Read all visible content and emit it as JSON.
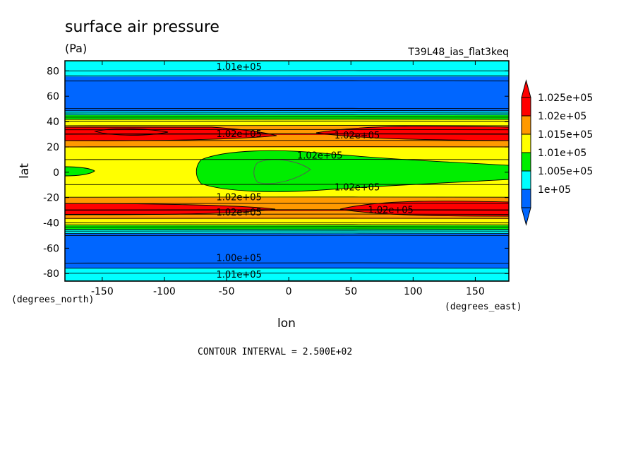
{
  "chart_data": {
    "type": "heatmap",
    "title": "surface air pressure",
    "subtitle": "(Pa)",
    "run_label": "T39L48_ias_flat3keq",
    "xlabel": "lon",
    "ylabel": "lat",
    "x_units": "(degrees_east)",
    "y_units": "(degrees_north)",
    "xlim": [
      -180,
      177
    ],
    "ylim": [
      -86,
      88
    ],
    "x_ticks": [
      -150,
      -100,
      -50,
      0,
      50,
      100,
      150
    ],
    "y_ticks": [
      -80,
      -60,
      -40,
      -20,
      0,
      20,
      40,
      60,
      80
    ],
    "footer": "CONTOUR INTERVAL = 2.500E+02",
    "contour_interval": 250,
    "grid": false,
    "legend_position": "right",
    "colorbar": {
      "labels": [
        "1.025e+05",
        "1.02e+05",
        "1.015e+05",
        "1.01e+05",
        "1.005e+05",
        "1e+05"
      ],
      "colors": [
        "#ff0000",
        "#ff9900",
        "#ffff00",
        "#00ee00",
        "#00ffff",
        "#0066ff"
      ],
      "above_color": "#ff0000",
      "below_color": "#0066ff"
    },
    "zonal_profile": [
      {
        "lat": 88,
        "pressure": 101000
      },
      {
        "lat": 80,
        "pressure": 100750
      },
      {
        "lat": 72,
        "pressure": 100250
      },
      {
        "lat": 60,
        "pressure": 100000
      },
      {
        "lat": 50,
        "pressure": 100250
      },
      {
        "lat": 45,
        "pressure": 101000
      },
      {
        "lat": 40,
        "pressure": 101750
      },
      {
        "lat": 30,
        "pressure": 102500
      },
      {
        "lat": 20,
        "pressure": 102000
      },
      {
        "lat": 10,
        "pressure": 101750
      },
      {
        "lat": 0,
        "pressure": 101500
      },
      {
        "lat": -10,
        "pressure": 101750
      },
      {
        "lat": -20,
        "pressure": 102000
      },
      {
        "lat": -30,
        "pressure": 102500
      },
      {
        "lat": -40,
        "pressure": 101750
      },
      {
        "lat": -45,
        "pressure": 101000
      },
      {
        "lat": -50,
        "pressure": 100250
      },
      {
        "lat": -60,
        "pressure": 100000
      },
      {
        "lat": -72,
        "pressure": 100250
      },
      {
        "lat": -80,
        "pressure": 100750
      },
      {
        "lat": -86,
        "pressure": 101000
      }
    ],
    "contour_labels": [
      {
        "text": "1.01e+05",
        "lon": -40,
        "lat": 83
      },
      {
        "text": "1.02e+05",
        "lon": -40,
        "lat": 30
      },
      {
        "text": "1.02e+05",
        "lon": 55,
        "lat": 29
      },
      {
        "text": "1.02e+05",
        "lon": 25,
        "lat": 13
      },
      {
        "text": "1.02e+05",
        "lon": 55,
        "lat": -12
      },
      {
        "text": "1.02e+05",
        "lon": -40,
        "lat": -20
      },
      {
        "text": "1.02e+05",
        "lon": -40,
        "lat": -32
      },
      {
        "text": "1.02e+05",
        "lon": 82,
        "lat": -30
      },
      {
        "text": "1.00e+05",
        "lon": -40,
        "lat": -68
      },
      {
        "text": "1.01e+05",
        "lon": -40,
        "lat": -81
      }
    ]
  }
}
